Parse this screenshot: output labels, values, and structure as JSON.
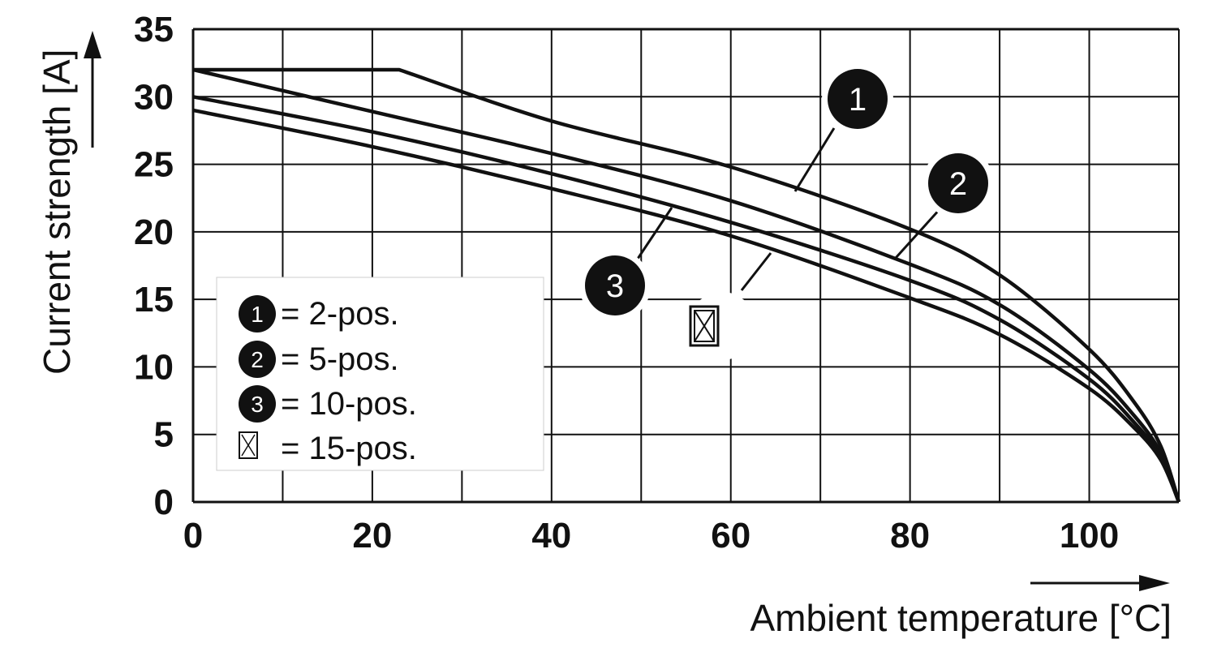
{
  "chart_data": {
    "type": "line",
    "xlabel": "Ambient temperature [°C]",
    "ylabel": "Current strength [A]",
    "xlim": [
      0,
      110
    ],
    "ylim": [
      0,
      35
    ],
    "x_ticks": [
      0,
      20,
      40,
      60,
      80,
      100
    ],
    "x_tick_labels": [
      "0",
      "20",
      "40",
      "60",
      "80",
      "100"
    ],
    "y_ticks": [
      0,
      5,
      10,
      15,
      20,
      25,
      30,
      35
    ],
    "y_tick_labels": [
      "0",
      "5",
      "10",
      "15",
      "20",
      "25",
      "30",
      "35"
    ],
    "grid": true,
    "legend_position": "bottom-left",
    "series": [
      {
        "marker": "1",
        "legend_label": "= 2-pos.",
        "x": [
          0,
          23,
          40,
          60,
          80,
          90,
          100,
          105,
          108,
          110
        ],
        "y": [
          32,
          32,
          28.2,
          24.8,
          20.2,
          16.8,
          11.3,
          7.4,
          4.1,
          0
        ]
      },
      {
        "marker": "2",
        "legend_label": "= 5-pos.",
        "x": [
          0,
          20,
          40,
          60,
          80,
          90,
          100,
          105,
          108,
          110
        ],
        "y": [
          32,
          28.9,
          25.8,
          22.3,
          17.6,
          14.6,
          9.8,
          6.4,
          3.6,
          0
        ]
      },
      {
        "marker": "3",
        "legend_label": "= 10-pos.",
        "x": [
          0,
          20,
          40,
          60,
          80,
          90,
          100,
          105,
          108,
          110
        ],
        "y": [
          30,
          27.4,
          24.3,
          20.7,
          16.4,
          13.5,
          9.1,
          5.9,
          3.3,
          0
        ]
      },
      {
        "marker": "box",
        "legend_label": "= 15-pos.",
        "x": [
          0,
          20,
          40,
          60,
          80,
          90,
          100,
          105,
          108,
          110
        ],
        "y": [
          29,
          26.3,
          23.2,
          19.7,
          15.1,
          12.4,
          8.4,
          5.5,
          3.1,
          0
        ]
      }
    ]
  }
}
